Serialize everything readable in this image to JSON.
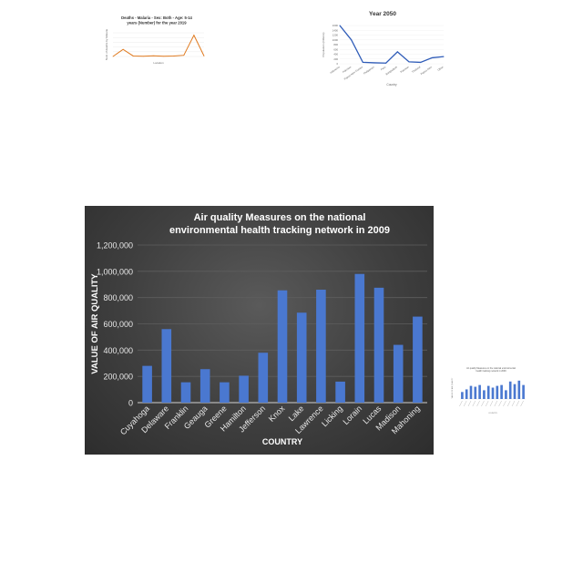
{
  "chart_data": [
    {
      "type": "line",
      "title": "Deaths - Malaria - Sex: Both - Age: 5-14 years (Number) for the year 2019",
      "xlabel": "Location",
      "ylabel": "Num of deaths by Malaria",
      "categories": [
        "",
        "",
        "",
        "",
        "",
        "",
        "",
        "",
        "",
        ""
      ],
      "values": [
        0,
        30,
        2,
        1,
        3,
        1,
        2,
        5,
        90,
        2
      ],
      "ylim": [
        0,
        100
      ],
      "grid": true,
      "colors": {
        "line": "#e07a1f"
      }
    },
    {
      "type": "line",
      "title": "Year 2050",
      "xlabel": "Country",
      "ylabel": "Population (millions)",
      "categories": [
        "Indonesia",
        "Pakistan",
        "Papua New Guinea",
        "Philippines",
        "Peru",
        "Bangladesh",
        "Pakistan",
        "Thailand",
        "Papua New",
        "Other"
      ],
      "values": [
        1600,
        1000,
        60,
        40,
        30,
        500,
        80,
        60,
        250,
        300
      ],
      "yticks": [
        "1600",
        "1400",
        "1200",
        "1000",
        "800",
        "600",
        "400",
        "200",
        "0"
      ],
      "ylim": [
        0,
        1600
      ],
      "grid": true,
      "colors": {
        "line": "#2f5cb8"
      }
    },
    {
      "type": "bar",
      "title": "Air quality Measures on the national environmental health tracking network in 2009",
      "xlabel": "COUNTRY",
      "ylabel": "VALUE OF AIR QUALITY",
      "categories": [
        "Cuyahoga",
        "Delaware",
        "Franklin",
        "Geauga",
        "Greene",
        "Hamilton",
        "Jefferson",
        "Knox",
        "Lake",
        "Lawrence",
        "Licking",
        "Lorain",
        "Lucas",
        "Madison",
        "Mahoning"
      ],
      "values": [
        280000,
        560000,
        155000,
        255000,
        155000,
        205000,
        380000,
        855000,
        685000,
        860000,
        160000,
        980000,
        875000,
        440000,
        655000
      ],
      "yticks": [
        "1,200,000",
        "1,000,000",
        "800,000",
        "600,000",
        "400,000",
        "200,000",
        "0"
      ],
      "ylim": [
        0,
        1200000
      ],
      "grid": true,
      "colors": {
        "bar": "#4a78d0",
        "background": "#3f3f3f",
        "text": "#ffffff",
        "grid": "#5e5e5e"
      }
    },
    {
      "type": "bar",
      "title": "Air quality Measures on the national environmental health tracking network in 2009",
      "xlabel": "COUNTRY",
      "ylabel": "VALUE OF AIR QUALITY",
      "categories": [
        "",
        "",
        "",
        "",
        "",
        "",
        "",
        "",
        "",
        "",
        "",
        "",
        "",
        "",
        ""
      ],
      "values": [
        80000,
        110000,
        150000,
        140000,
        160000,
        100000,
        150000,
        130000,
        150000,
        160000,
        100000,
        200000,
        170000,
        210000,
        160000
      ],
      "ylim": [
        0,
        250000
      ],
      "grid": false,
      "colors": {
        "bar": "#4a78d0"
      }
    }
  ]
}
